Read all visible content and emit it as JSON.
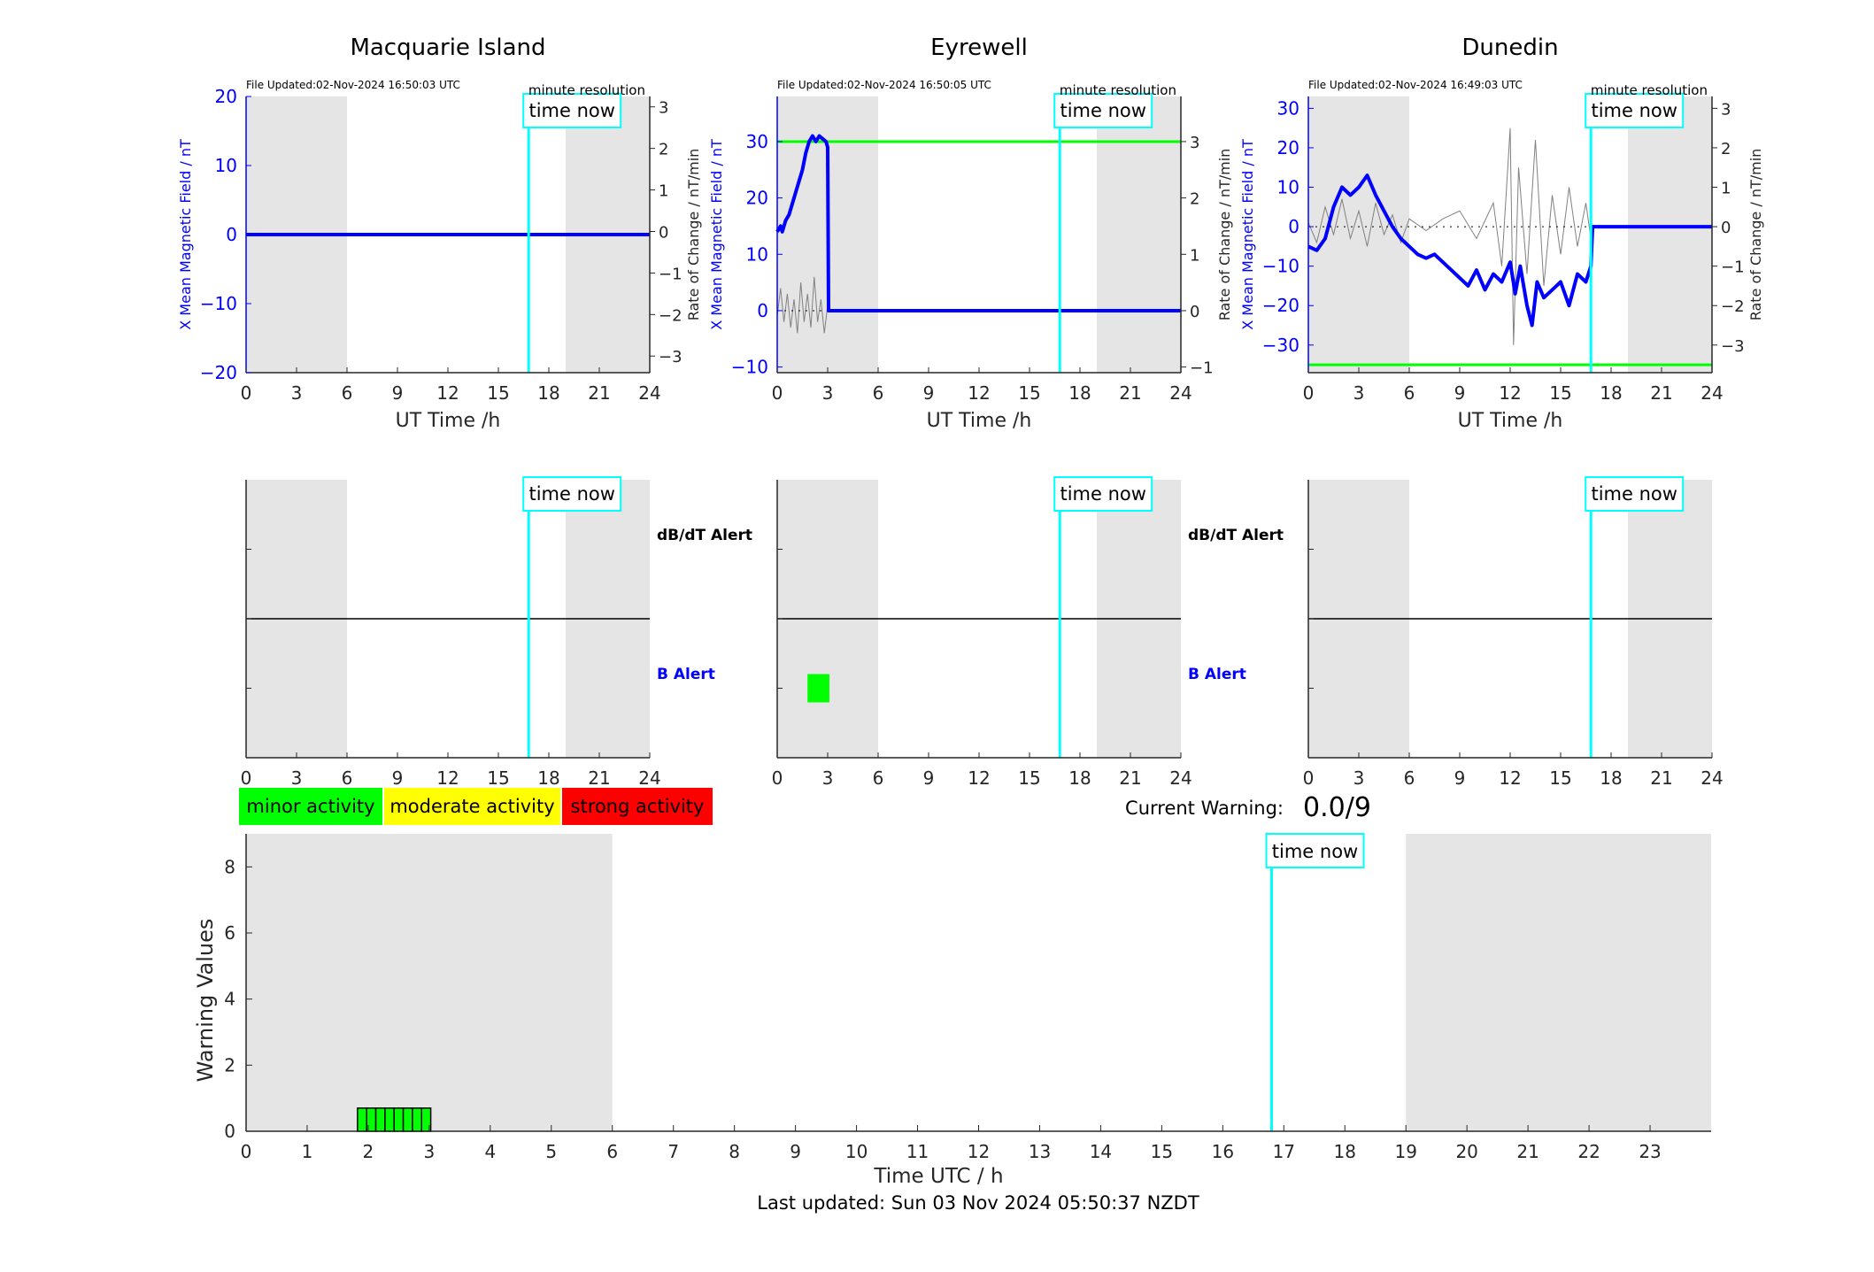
{
  "colors": {
    "field": "#0000ff",
    "rate": "#808080",
    "now": "#00ffff",
    "night": "#e5e5e5",
    "threshold": "#00ff00",
    "minor": "#00ff00",
    "moderate": "#ffff00",
    "strong": "#ff0000",
    "axis": "#262626"
  },
  "stations": [
    {
      "name": "Macquarie Island",
      "file_updated": "File Updated:02-Nov-2024 16:50:03 UTC",
      "resolution": "minute resolution",
      "now_label": "time now",
      "ylabel": "X Mean Magnetic Field / nT",
      "y2label": "Rate of Change / nT/min",
      "xlabel": "UT Time /h",
      "ylim": [
        -20,
        20
      ],
      "yticks": [
        -20,
        -10,
        0,
        10,
        20
      ],
      "y2lim": [
        -3.4,
        3.25
      ],
      "y2ticks": [
        -3,
        -2,
        -1,
        0,
        1,
        2,
        3
      ],
      "xticks": [
        0,
        3,
        6,
        9,
        12,
        15,
        18,
        21,
        24
      ],
      "night": [
        [
          0,
          6
        ],
        [
          19,
          24
        ]
      ],
      "now": 16.8,
      "threshold": null,
      "field": [
        [
          0,
          0
        ],
        [
          24,
          0
        ]
      ],
      "rate": [],
      "rate_baseline": null,
      "alert_labels": {
        "dbdt": "dB/dT Alert",
        "b": "B Alert"
      },
      "alerts": []
    },
    {
      "name": "Eyrewell",
      "file_updated": "File Updated:02-Nov-2024 16:50:05 UTC",
      "resolution": "minute resolution",
      "now_label": "time now",
      "ylabel": "X Mean Magnetic Field / nT",
      "y2label": "Rate of Change / nT/min",
      "xlabel": "UT Time /h",
      "ylim": [
        -11,
        38
      ],
      "yticks": [
        -10,
        0,
        10,
        20,
        30
      ],
      "y2lim": [
        -1.1,
        3.8
      ],
      "y2ticks": [
        -1,
        0,
        1,
        2,
        3
      ],
      "xticks": [
        0,
        3,
        6,
        9,
        12,
        15,
        18,
        21,
        24
      ],
      "night": [
        [
          0,
          6
        ],
        [
          19,
          24
        ]
      ],
      "now": 16.8,
      "threshold": 30,
      "field": [
        [
          0,
          14
        ],
        [
          0.2,
          15
        ],
        [
          0.3,
          14
        ],
        [
          0.5,
          16
        ],
        [
          0.7,
          17
        ],
        [
          0.9,
          19
        ],
        [
          1.1,
          21
        ],
        [
          1.3,
          23
        ],
        [
          1.5,
          25
        ],
        [
          1.7,
          28
        ],
        [
          1.9,
          30
        ],
        [
          2.1,
          31
        ],
        [
          2.3,
          30
        ],
        [
          2.5,
          31
        ],
        [
          2.7,
          30.5
        ],
        [
          2.9,
          30
        ],
        [
          3.0,
          29
        ],
        [
          3.05,
          0
        ],
        [
          24,
          0
        ]
      ],
      "rate": [
        [
          0,
          -0.1
        ],
        [
          0.2,
          0.4
        ],
        [
          0.4,
          -0.2
        ],
        [
          0.6,
          0.3
        ],
        [
          0.8,
          -0.3
        ],
        [
          1.0,
          0.2
        ],
        [
          1.2,
          -0.4
        ],
        [
          1.4,
          0.5
        ],
        [
          1.6,
          -0.2
        ],
        [
          1.8,
          0.3
        ],
        [
          2.0,
          -0.3
        ],
        [
          2.2,
          0.6
        ],
        [
          2.4,
          -0.2
        ],
        [
          2.6,
          0.2
        ],
        [
          2.8,
          -0.4
        ],
        [
          3.0,
          0.1
        ]
      ],
      "rate_baseline": [
        0,
        3
      ],
      "alert_labels": {
        "dbdt": "dB/dT Alert",
        "b": "B Alert"
      },
      "alerts": [
        {
          "row": "b",
          "start": 1.8,
          "end": 3.1
        }
      ]
    },
    {
      "name": "Dunedin",
      "file_updated": "File Updated:02-Nov-2024 16:49:03 UTC",
      "resolution": "minute resolution",
      "now_label": "time now",
      "ylabel": "X Mean Magnetic Field / nT",
      "y2label": "Rate of Change / nT/min",
      "xlabel": "UT Time /h",
      "ylim": [
        -37,
        33
      ],
      "yticks": [
        -30,
        -20,
        -10,
        0,
        10,
        20,
        30
      ],
      "y2lim": [
        -3.7,
        3.3
      ],
      "y2ticks": [
        -3,
        -2,
        -1,
        0,
        1,
        2,
        3
      ],
      "xticks": [
        0,
        3,
        6,
        9,
        12,
        15,
        18,
        21,
        24
      ],
      "night": [
        [
          0,
          6
        ],
        [
          19,
          24
        ]
      ],
      "now": 16.8,
      "threshold": -35,
      "field": [
        [
          0,
          -5
        ],
        [
          0.5,
          -6
        ],
        [
          1.0,
          -3
        ],
        [
          1.5,
          5
        ],
        [
          2.0,
          10
        ],
        [
          2.5,
          8
        ],
        [
          3.0,
          10
        ],
        [
          3.5,
          13
        ],
        [
          4.0,
          8
        ],
        [
          4.5,
          4
        ],
        [
          5.0,
          0
        ],
        [
          5.5,
          -3
        ],
        [
          6.0,
          -5
        ],
        [
          6.5,
          -7
        ],
        [
          7.0,
          -8
        ],
        [
          7.5,
          -7
        ],
        [
          8.0,
          -9
        ],
        [
          8.5,
          -11
        ],
        [
          9.0,
          -13
        ],
        [
          9.5,
          -15
        ],
        [
          10.0,
          -11
        ],
        [
          10.5,
          -16
        ],
        [
          11.0,
          -12
        ],
        [
          11.5,
          -14
        ],
        [
          12.0,
          -9
        ],
        [
          12.3,
          -17
        ],
        [
          12.6,
          -10
        ],
        [
          13.0,
          -20
        ],
        [
          13.3,
          -25
        ],
        [
          13.6,
          -14
        ],
        [
          14.0,
          -18
        ],
        [
          14.5,
          -16
        ],
        [
          15.0,
          -14
        ],
        [
          15.5,
          -20
        ],
        [
          16.0,
          -12
        ],
        [
          16.5,
          -14
        ],
        [
          16.8,
          -10
        ],
        [
          16.9,
          0
        ],
        [
          24,
          0
        ]
      ],
      "rate": [
        [
          0,
          0.1
        ],
        [
          0.5,
          -0.4
        ],
        [
          1.0,
          0.5
        ],
        [
          1.5,
          -0.2
        ],
        [
          2.0,
          0.7
        ],
        [
          2.5,
          -0.3
        ],
        [
          3.0,
          0.4
        ],
        [
          3.5,
          -0.5
        ],
        [
          4.0,
          0.6
        ],
        [
          4.5,
          -0.2
        ],
        [
          5.0,
          0.3
        ],
        [
          5.5,
          -0.4
        ],
        [
          6.0,
          0.2
        ],
        [
          7.0,
          -0.1
        ],
        [
          8.0,
          0.2
        ],
        [
          9.0,
          0.4
        ],
        [
          10.0,
          -0.3
        ],
        [
          11.0,
          0.6
        ],
        [
          11.5,
          -1.0
        ],
        [
          12.0,
          2.5
        ],
        [
          12.2,
          -3.0
        ],
        [
          12.5,
          1.5
        ],
        [
          13.0,
          -1.2
        ],
        [
          13.5,
          2.2
        ],
        [
          14.0,
          -1.5
        ],
        [
          14.5,
          0.8
        ],
        [
          15.0,
          -0.7
        ],
        [
          15.5,
          1.0
        ],
        [
          16.0,
          -0.5
        ],
        [
          16.5,
          0.6
        ],
        [
          16.8,
          -0.3
        ]
      ],
      "rate_baseline": [
        0,
        16.8
      ],
      "alert_labels": {
        "dbdt": "",
        "b": ""
      },
      "alerts": []
    }
  ],
  "legend": [
    {
      "label": "minor activity",
      "color": "#00ff00"
    },
    {
      "label": "moderate activity",
      "color": "#ffff00"
    },
    {
      "label": "strong activity",
      "color": "#ff0000"
    }
  ],
  "current_warning": {
    "label": "Current Warning:",
    "value": "0.0/9"
  },
  "warning_chart": {
    "ylabel": "Warning Values",
    "xlabel": "Time UTC / h",
    "now_label": "time now",
    "now": 16.8,
    "xlim": [
      0,
      24
    ],
    "xticks": [
      0,
      1,
      2,
      3,
      4,
      5,
      6,
      7,
      8,
      9,
      10,
      11,
      12,
      13,
      14,
      15,
      16,
      17,
      18,
      19,
      20,
      21,
      22,
      23
    ],
    "ylim": [
      0,
      9
    ],
    "yticks": [
      0,
      2,
      4,
      6,
      8
    ],
    "night": [
      [
        0,
        6
      ],
      [
        19,
        24
      ]
    ]
  },
  "chart_data": {
    "type": "bar",
    "x": [
      1.9,
      2.05,
      2.2,
      2.35,
      2.5,
      2.65,
      2.8,
      2.95
    ],
    "values": [
      0.7,
      0.7,
      0.7,
      0.7,
      0.7,
      0.7,
      0.7,
      0.7
    ],
    "xlabel": "Time UTC / h",
    "ylabel": "Warning Values",
    "xlim": [
      0,
      24
    ],
    "ylim": [
      0,
      9
    ]
  },
  "footer": {
    "last_updated": "Last updated: Sun 03 Nov 2024 05:50:37 NZDT"
  }
}
